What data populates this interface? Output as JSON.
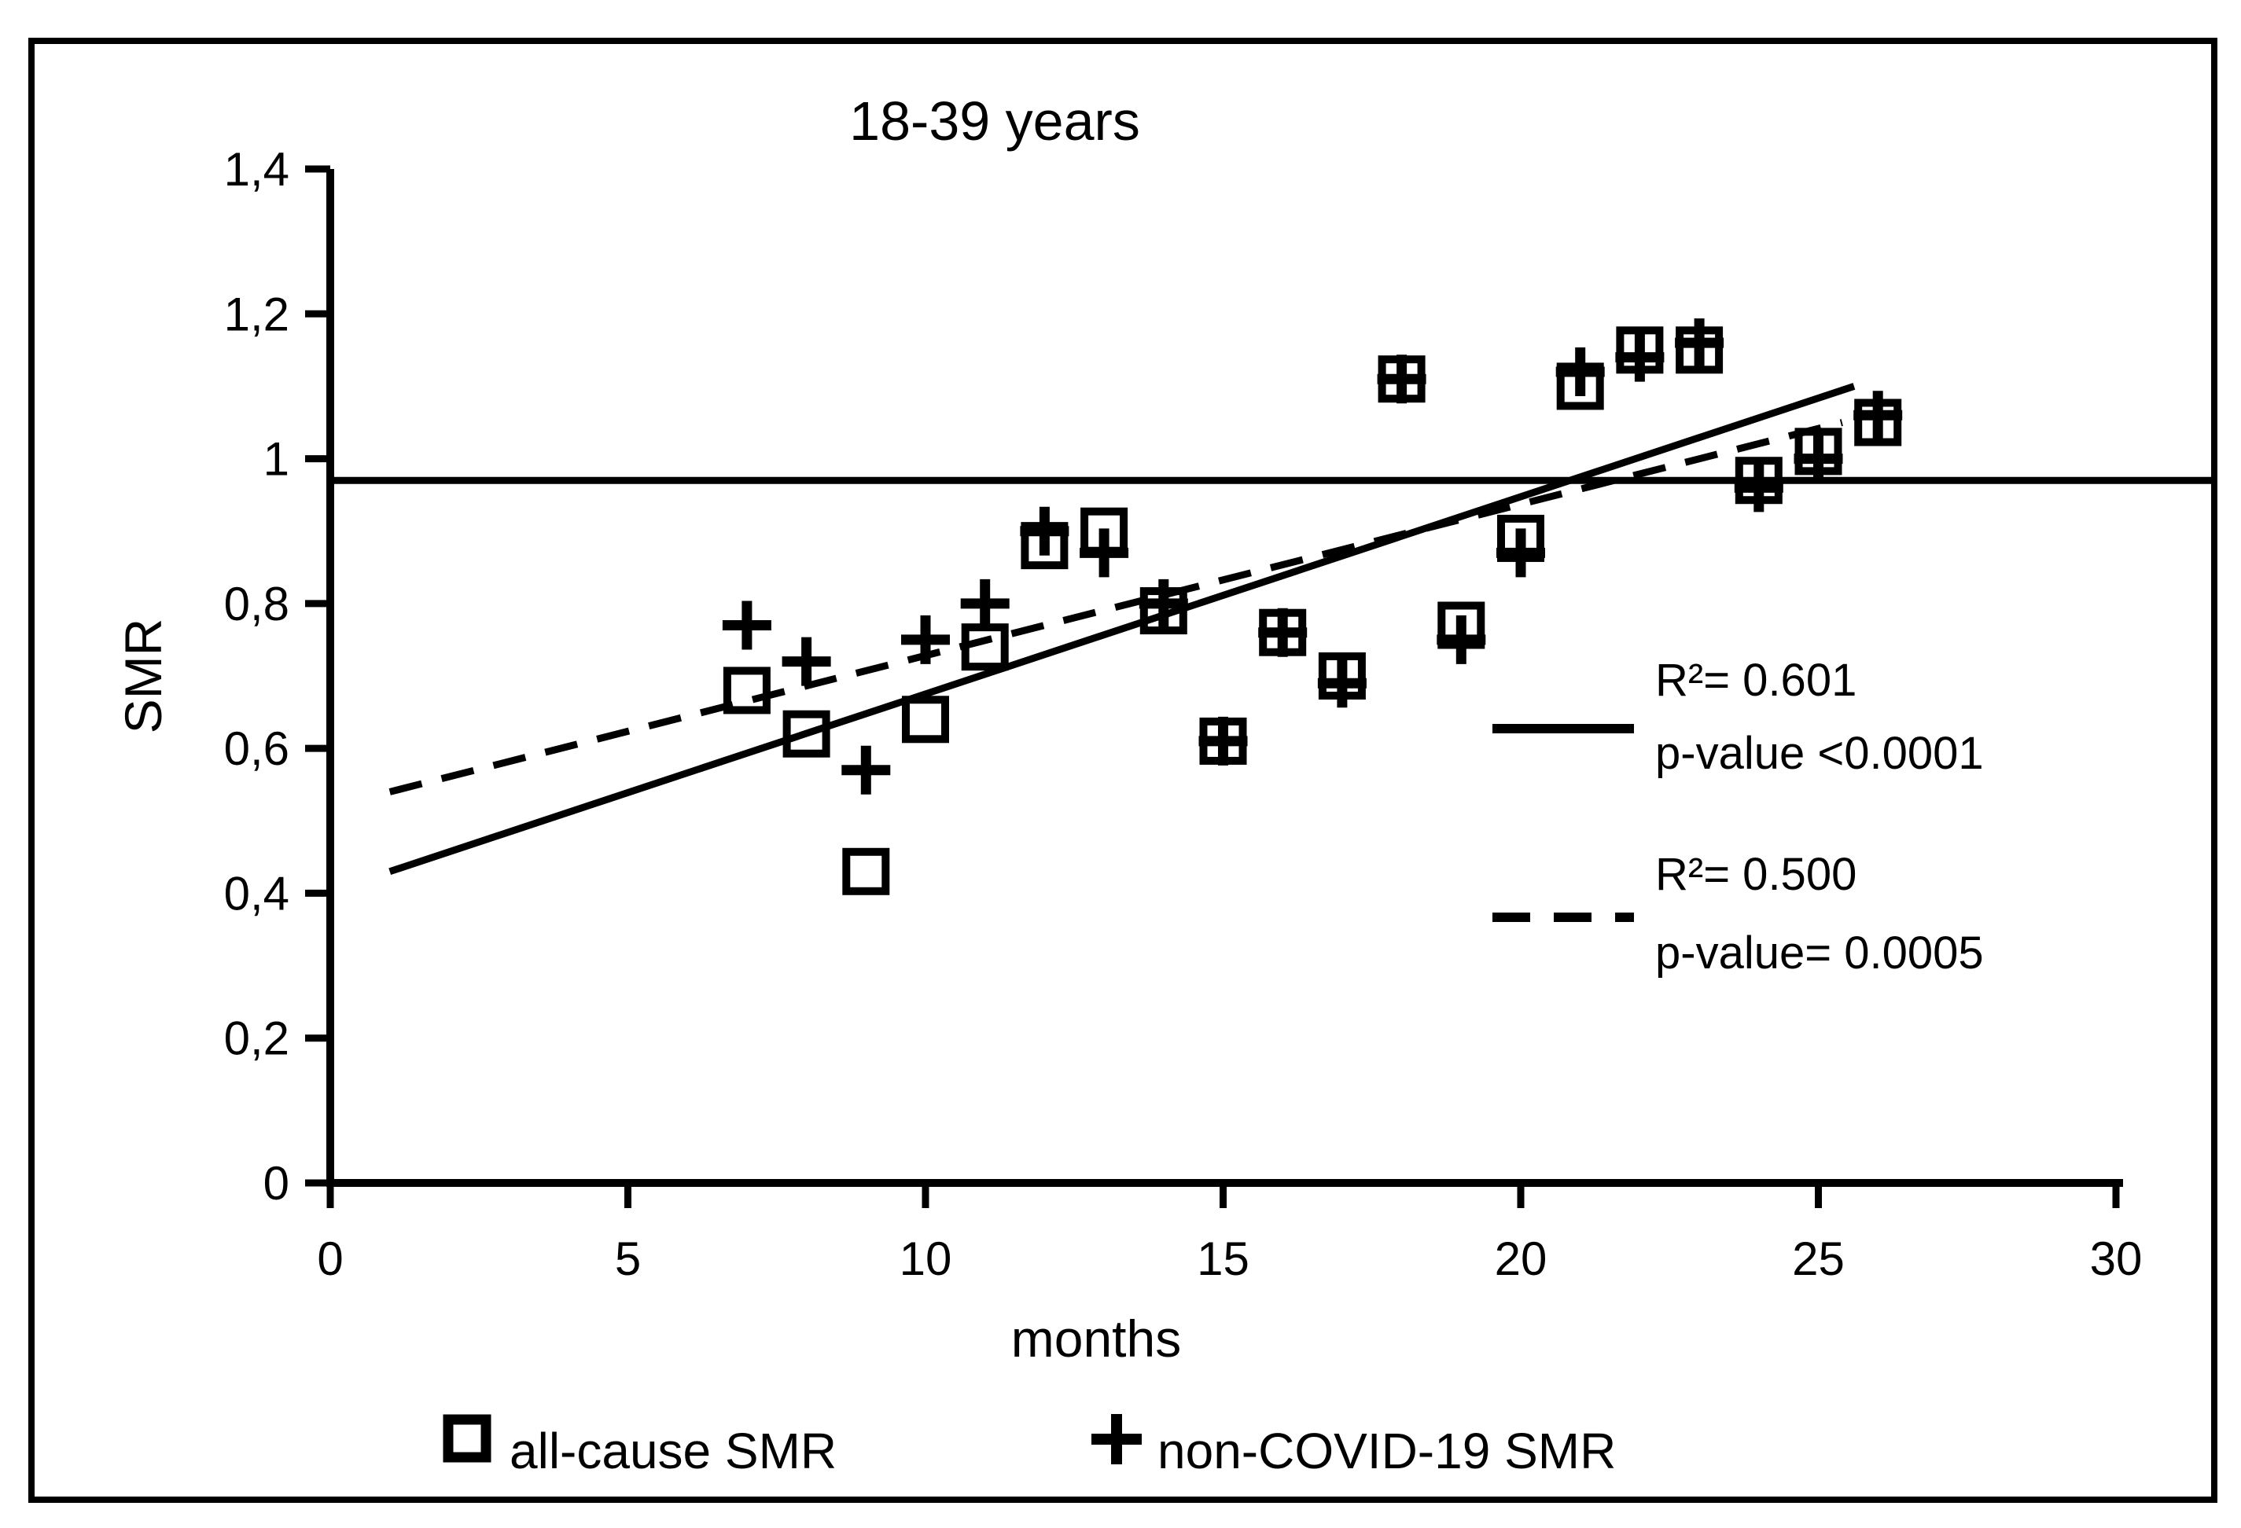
{
  "colors": {
    "ink": "#000000",
    "background": "#ffffff"
  },
  "chart_data": {
    "type": "scatter",
    "title": "18-39 years",
    "xlabel": "months",
    "ylabel": "SMR",
    "xlim": [
      0,
      30
    ],
    "ylim": [
      0,
      1.4
    ],
    "grid": "off",
    "x_ticks": [
      0,
      5,
      10,
      15,
      20,
      25,
      30
    ],
    "x_tick_labels": [
      "0",
      "5",
      "10",
      "15",
      "20",
      "25",
      "30"
    ],
    "y_ticks": [
      0,
      0.2,
      0.4,
      0.6,
      0.8,
      1.0,
      1.2,
      1.4
    ],
    "y_tick_labels": [
      "0",
      "0,2",
      "0,4",
      "0,6",
      "0,8",
      "1",
      "1,2",
      "1,4"
    ],
    "reference_line_y": 0.97,
    "x": [
      7,
      8,
      9,
      10,
      11,
      12,
      13,
      14,
      15,
      16,
      17,
      18,
      19,
      20,
      21,
      22,
      23,
      24,
      25,
      26
    ],
    "series": [
      {
        "name": "all-cause SMR",
        "marker": "square",
        "values": [
          0.68,
          0.62,
          0.43,
          0.64,
          0.74,
          0.88,
          0.9,
          0.79,
          0.61,
          0.76,
          0.7,
          1.11,
          0.77,
          0.89,
          1.1,
          1.15,
          1.15,
          0.97,
          1.01,
          1.05
        ]
      },
      {
        "name": "non-COVID-19 SMR",
        "marker": "plus",
        "values": [
          0.77,
          0.72,
          0.57,
          0.75,
          0.8,
          0.9,
          0.87,
          0.8,
          0.61,
          0.76,
          0.69,
          1.11,
          0.75,
          0.87,
          1.12,
          1.14,
          1.16,
          0.96,
          1.0,
          1.06
        ]
      }
    ],
    "trend_lines": [
      {
        "style": "solid",
        "from": {
          "x": 1,
          "y": 0.43
        },
        "to": {
          "x": 25.6,
          "y": 1.1
        },
        "r_squared_label": "R²= 0.601",
        "p_value_label": "p-value <0.0001"
      },
      {
        "style": "dashed",
        "from": {
          "x": 1,
          "y": 0.54
        },
        "to": {
          "x": 25.4,
          "y": 1.05
        },
        "r_squared_label": "R²= 0.500",
        "p_value_label": "p-value= 0.0005"
      }
    ],
    "legend_position": "bottom"
  }
}
